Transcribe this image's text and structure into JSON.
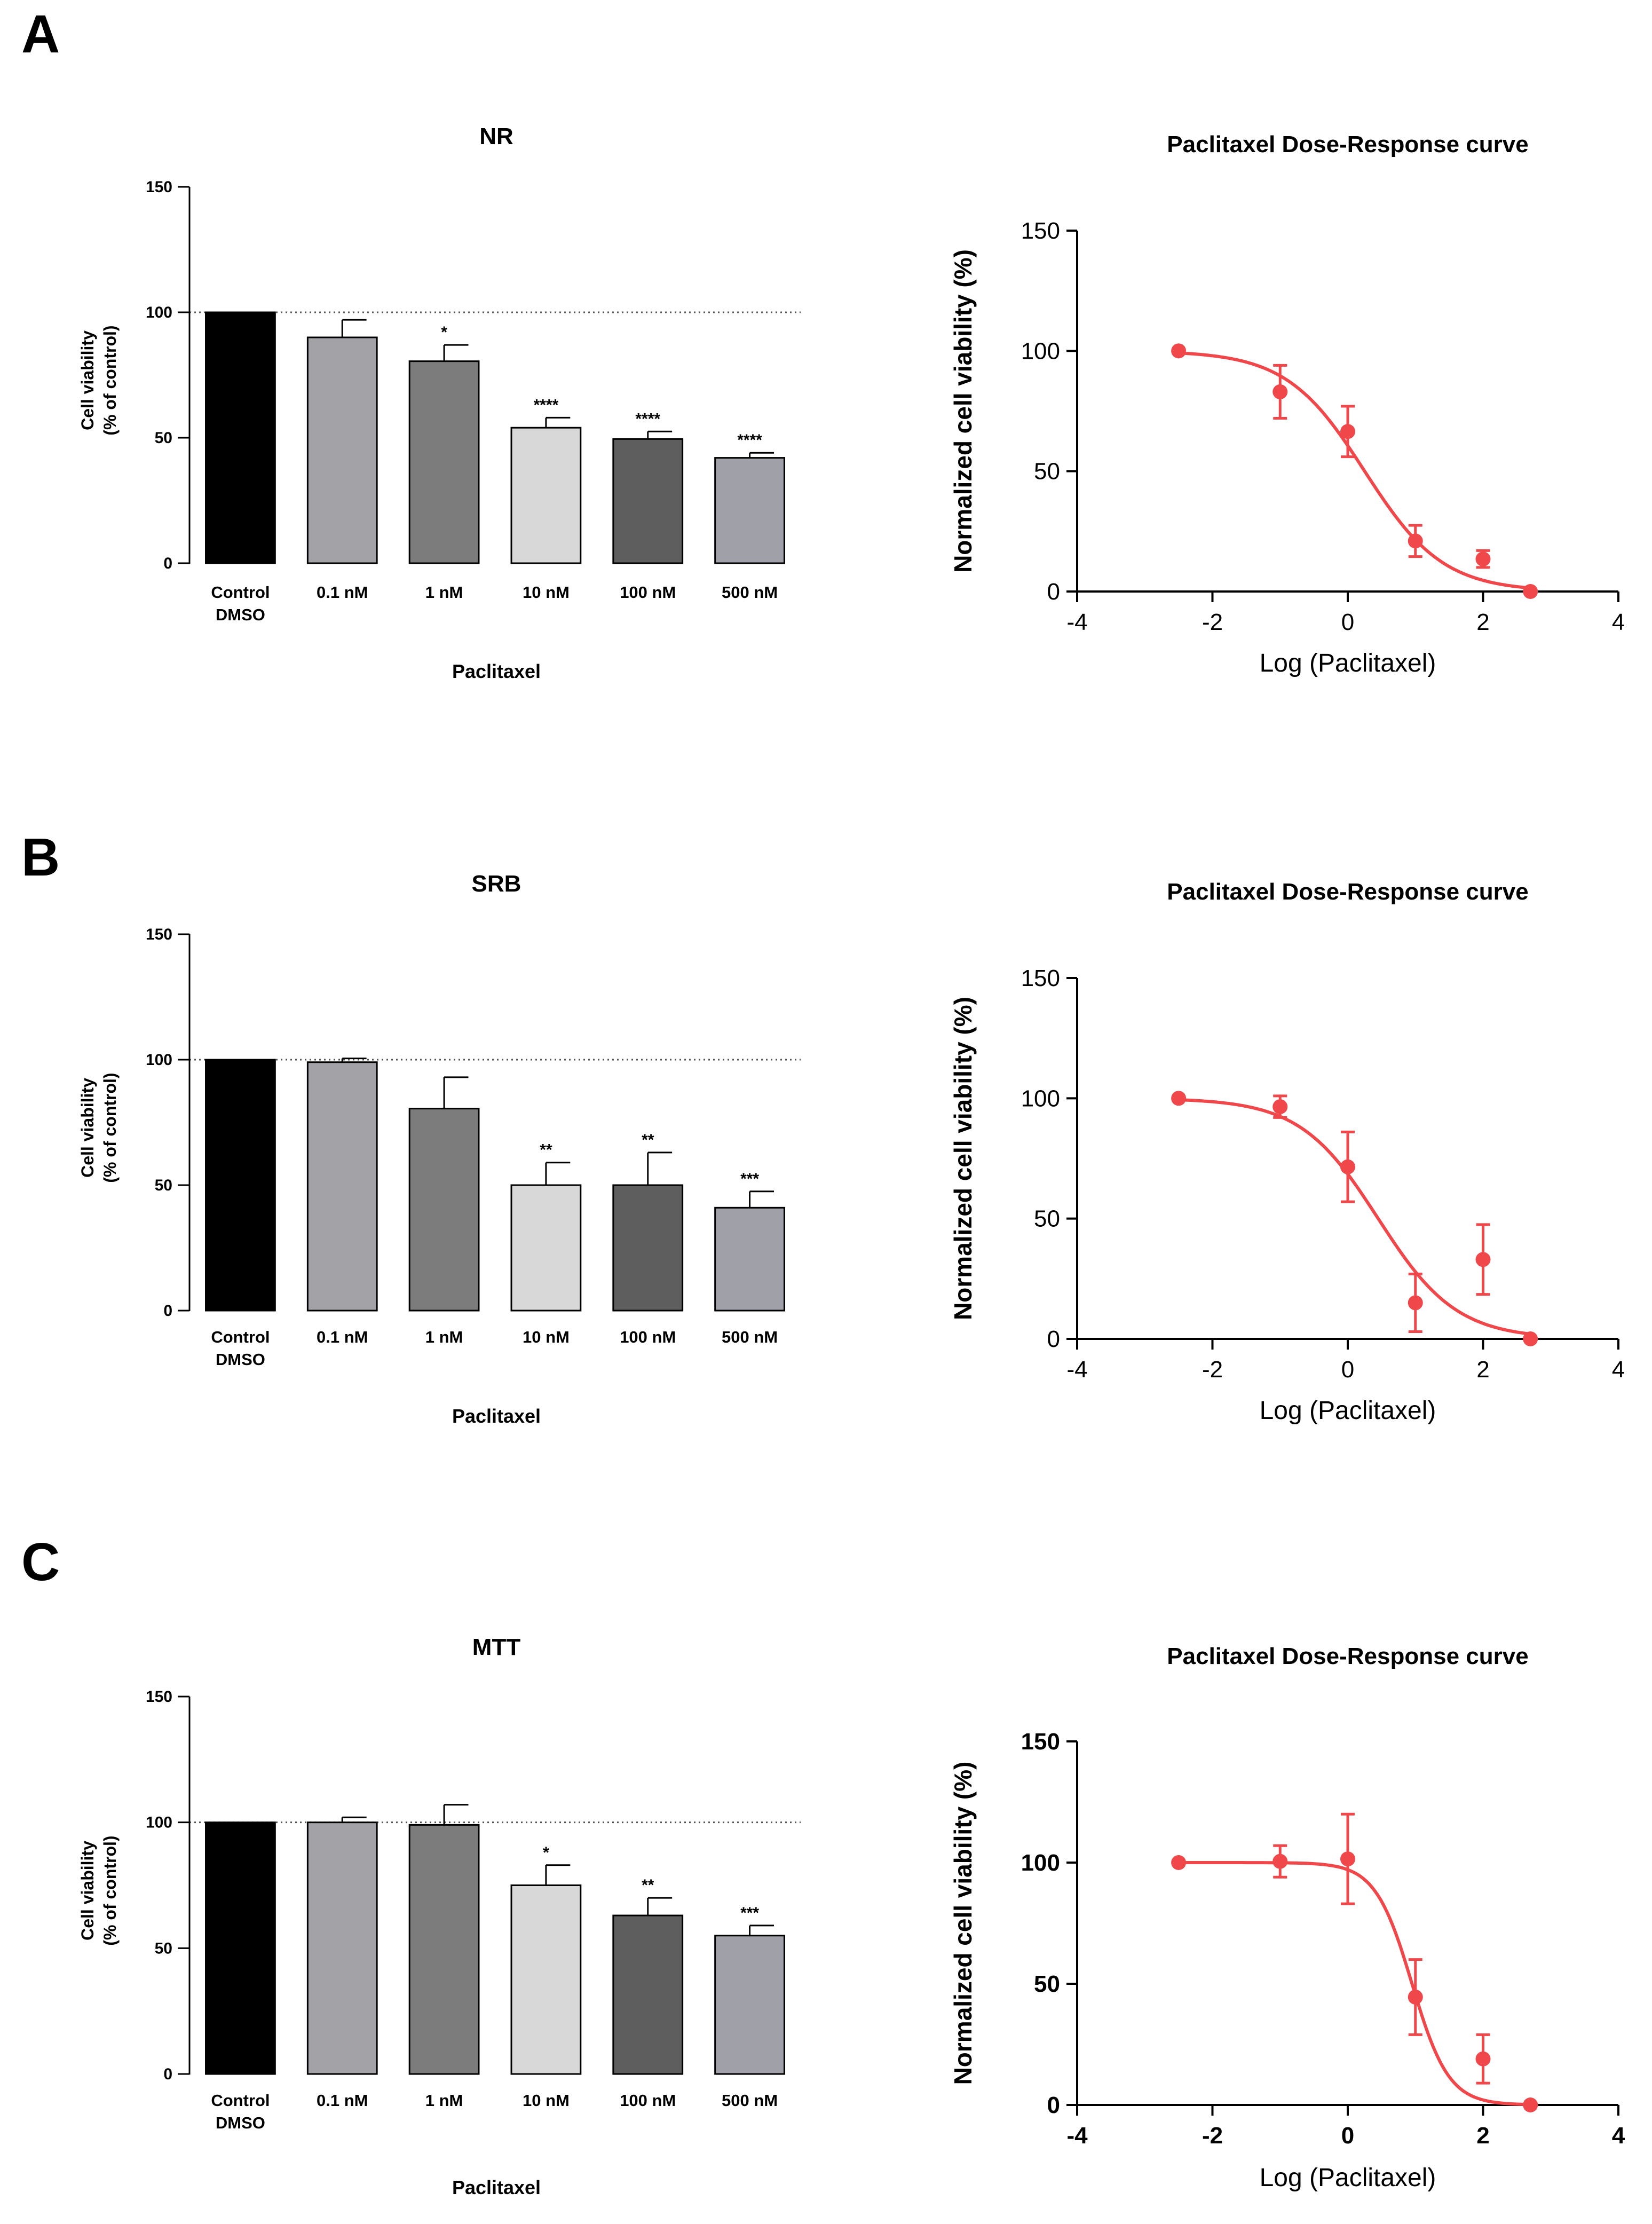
{
  "figure": {
    "panels": [
      {
        "letter": "A"
      },
      {
        "letter": "B"
      },
      {
        "letter": "C"
      }
    ]
  },
  "chart_data": [
    {
      "type": "bar",
      "panel": "A",
      "title": "NR",
      "categories": [
        "Control\nDMSO",
        "0.1 nM",
        "1 nM",
        "10 nM",
        "100 nM",
        "500 nM"
      ],
      "values": [
        100,
        90,
        80.5,
        54,
        49.5,
        42
      ],
      "errors": [
        0,
        7,
        6.5,
        4,
        3,
        2
      ],
      "significance": [
        "",
        "",
        "*",
        "****",
        "****",
        "****"
      ],
      "colors": [
        "#000000",
        "#a2a2a7",
        "#7c7c7c",
        "#d8d8d8",
        "#5e5e5e",
        "#a0a0a8"
      ],
      "xlabel": "Paclitaxel",
      "ylabel": [
        "Cell viability",
        "(% of control)"
      ],
      "ylim": [
        0,
        150
      ],
      "yticks": [
        "0",
        "50",
        "100",
        "150"
      ],
      "reference_line": 100
    },
    {
      "type": "scatter",
      "panel": "A",
      "title": "Paclitaxel Dose-Response curve",
      "xlabel": "Log (Paclitaxel)",
      "ylabel": "Normalized cell viability (%)",
      "xlim": [
        -4,
        4
      ],
      "ylim": [
        0,
        150
      ],
      "xticks": [
        "-4",
        "-2",
        "0",
        "2",
        "4"
      ],
      "yticks": [
        "0",
        "50",
        "100",
        "150"
      ],
      "x": [
        -2.5,
        -1.0,
        0.0,
        1.0,
        2.0,
        2.7
      ],
      "y": [
        100,
        83,
        66.5,
        21,
        13.5,
        0
      ],
      "errors": [
        0,
        11,
        10.5,
        6.5,
        3.5,
        0
      ],
      "fit": {
        "top": 100,
        "bottom": 0,
        "log_ic50": 0.25,
        "hill": 0.75
      },
      "color": "#f0474b"
    },
    {
      "type": "bar",
      "panel": "B",
      "title": "SRB",
      "categories": [
        "Control\nDMSO",
        "0.1 nM",
        "1 nM",
        "10 nM",
        "100 nM",
        "500 nM"
      ],
      "values": [
        100,
        99,
        80.5,
        50,
        50,
        41
      ],
      "errors": [
        0,
        1.5,
        12.5,
        9,
        13,
        6.5
      ],
      "significance": [
        "",
        "",
        "",
        "**",
        "**",
        "***"
      ],
      "colors": [
        "#000000",
        "#a2a2a7",
        "#7c7c7c",
        "#d8d8d8",
        "#5e5e5e",
        "#a0a0a8"
      ],
      "xlabel": "Paclitaxel",
      "ylabel": [
        "Cell viability",
        "(% of control)"
      ],
      "ylim": [
        0,
        150
      ],
      "yticks": [
        "0",
        "50",
        "100",
        "150"
      ],
      "reference_line": 100
    },
    {
      "type": "scatter",
      "panel": "B",
      "title": "Paclitaxel Dose-Response curve",
      "xlabel": "Log (Paclitaxel)",
      "ylabel": "Normalized cell viability (%)",
      "xlim": [
        -4,
        4
      ],
      "ylim": [
        0,
        150
      ],
      "xticks": [
        "-4",
        "-2",
        "0",
        "2",
        "4"
      ],
      "yticks": [
        "0",
        "50",
        "100",
        "150"
      ],
      "x": [
        -2.5,
        -1.0,
        0.0,
        1.0,
        2.0,
        2.7
      ],
      "y": [
        100,
        96.5,
        71.5,
        15,
        33,
        0
      ],
      "errors": [
        0,
        4.5,
        14.5,
        12,
        14.5,
        0
      ],
      "fit": {
        "top": 100,
        "bottom": 0,
        "log_ic50": 0.45,
        "hill": 0.75
      },
      "color": "#f0474b"
    },
    {
      "type": "bar",
      "panel": "C",
      "title": "MTT",
      "categories": [
        "Control\nDMSO",
        "0.1 nM",
        "1 nM",
        "10 nM",
        "100 nM",
        "500 nM"
      ],
      "values": [
        100,
        100,
        99,
        75,
        63,
        55
      ],
      "errors": [
        0,
        2,
        8,
        8,
        7,
        4
      ],
      "significance": [
        "",
        "",
        "",
        "*",
        "**",
        "***"
      ],
      "colors": [
        "#000000",
        "#a2a2a7",
        "#7c7c7c",
        "#d8d8d8",
        "#5e5e5e",
        "#a0a0a8"
      ],
      "xlabel": "Paclitaxel",
      "ylabel": [
        "Cell viability",
        "(% of control)"
      ],
      "ylim": [
        0,
        150
      ],
      "yticks": [
        "0",
        "50",
        "100",
        "150"
      ],
      "reference_line": 100
    },
    {
      "type": "scatter",
      "panel": "C",
      "title": "Paclitaxel Dose-Response curve",
      "xlabel": "Log (Paclitaxel)",
      "ylabel": "Normalized cell viability (%)",
      "xlim": [
        -4,
        4
      ],
      "ylim": [
        0,
        150
      ],
      "xticks": [
        "-4",
        "-2",
        "0",
        "2",
        "4"
      ],
      "yticks": [
        "0",
        "50",
        "100",
        "150"
      ],
      "x": [
        -2.5,
        -1.0,
        0.0,
        1.0,
        2.0,
        2.7
      ],
      "y": [
        100,
        100.5,
        101.5,
        44.5,
        19,
        0
      ],
      "errors": [
        0,
        6.5,
        18.5,
        15.5,
        10,
        0
      ],
      "fit": {
        "top": 100,
        "bottom": 0,
        "log_ic50": 0.95,
        "hill": 1.6
      },
      "color": "#f0474b"
    }
  ]
}
